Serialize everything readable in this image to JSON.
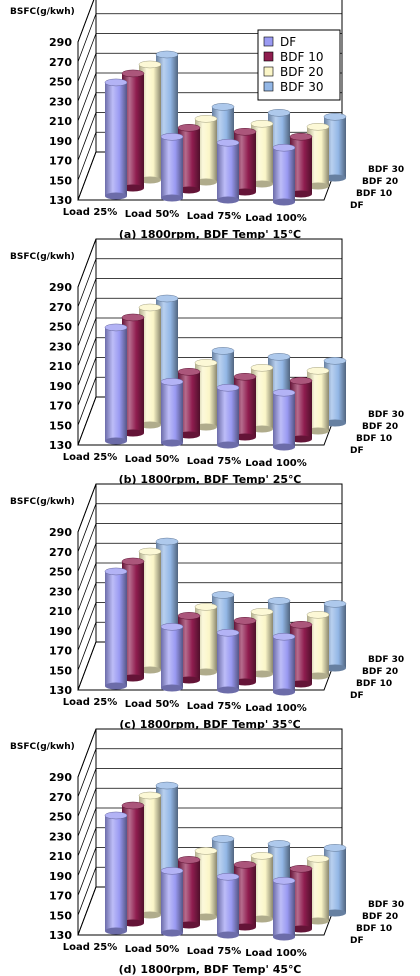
{
  "chart_data": [
    {
      "type": "bar",
      "title": "(a) 1800rpm, BDF Temp' 15℃",
      "ylabel": "BSFC(g/kwh)",
      "ylim": [
        130,
        290
      ],
      "yticks": [
        130,
        150,
        170,
        190,
        210,
        230,
        250,
        270,
        290
      ],
      "categories": [
        "Load 25%",
        "Load 50%",
        "Load 75%",
        "Load 100%"
      ],
      "depth_labels": [
        "DF",
        "BDF 10",
        "BDF 20",
        "BDF 30"
      ],
      "legend": "top-right",
      "grid": true,
      "series": [
        {
          "name": "DF",
          "values": [
            245,
            192,
            188,
            185
          ]
        },
        {
          "name": "BDF 10",
          "values": [
            246,
            193,
            191,
            188
          ]
        },
        {
          "name": "BDF 20",
          "values": [
            247,
            194,
            191,
            190
          ]
        },
        {
          "name": "BDF 30",
          "values": [
            249,
            198,
            194,
            192
          ]
        }
      ]
    },
    {
      "type": "bar",
      "title": "(b) 1800rpm, BDF Temp' 25℃",
      "ylabel": "BSFC(g/kwh)",
      "ylim": [
        130,
        290
      ],
      "yticks": [
        130,
        150,
        170,
        190,
        210,
        230,
        250,
        270,
        290
      ],
      "categories": [
        "Load 25%",
        "Load 50%",
        "Load 75%",
        "Load 100%"
      ],
      "depth_labels": [
        "DF",
        "BDF 10",
        "BDF 20",
        "BDF 30"
      ],
      "grid": true,
      "series": [
        {
          "name": "DF",
          "values": [
            245,
            192,
            188,
            185
          ]
        },
        {
          "name": "BDF 10",
          "values": [
            247,
            194,
            191,
            189
          ]
        },
        {
          "name": "BDF 20",
          "values": [
            249,
            195,
            192,
            191
          ]
        },
        {
          "name": "BDF 30",
          "values": [
            250,
            199,
            195,
            193
          ]
        }
      ]
    },
    {
      "type": "bar",
      "title": "(c) 1800rpm, BDF Temp' 35℃",
      "ylabel": "BSFC(g/kwh)",
      "ylim": [
        130,
        290
      ],
      "yticks": [
        130,
        150,
        170,
        190,
        210,
        230,
        250,
        270,
        290
      ],
      "categories": [
        "Load 25%",
        "Load 50%",
        "Load 75%",
        "Load 100%"
      ],
      "depth_labels": [
        "DF",
        "BDF 10",
        "BDF 20",
        "BDF 30"
      ],
      "grid": true,
      "series": [
        {
          "name": "DF",
          "values": [
            246,
            192,
            188,
            186
          ]
        },
        {
          "name": "BDF 10",
          "values": [
            248,
            195,
            192,
            190
          ]
        },
        {
          "name": "BDF 20",
          "values": [
            250,
            196,
            193,
            192
          ]
        },
        {
          "name": "BDF 30",
          "values": [
            252,
            200,
            196,
            195
          ]
        }
      ]
    },
    {
      "type": "bar",
      "title": "(d) 1800rpm, BDF Temp' 45℃",
      "ylabel": "BSFC(g/kwh)",
      "ylim": [
        130,
        290
      ],
      "yticks": [
        130,
        150,
        170,
        190,
        210,
        230,
        250,
        270,
        290
      ],
      "categories": [
        "Load 25%",
        "Load 50%",
        "Load 75%",
        "Load 100%"
      ],
      "depth_labels": [
        "DF",
        "BDF 10",
        "BDF 20",
        "BDF 30"
      ],
      "grid": true,
      "series": [
        {
          "name": "DF",
          "values": [
            247,
            193,
            189,
            187
          ]
        },
        {
          "name": "BDF 10",
          "values": [
            249,
            196,
            193,
            191
          ]
        },
        {
          "name": "BDF 20",
          "values": [
            251,
            197,
            194,
            193
          ]
        },
        {
          "name": "BDF 30",
          "values": [
            253,
            201,
            198,
            196
          ]
        }
      ]
    }
  ],
  "colors": {
    "DF": "#9a9af2",
    "BDF 10": "#8f1d4f",
    "BDF 20": "#fbf6c8",
    "BDF 30": "#93b7e6"
  }
}
